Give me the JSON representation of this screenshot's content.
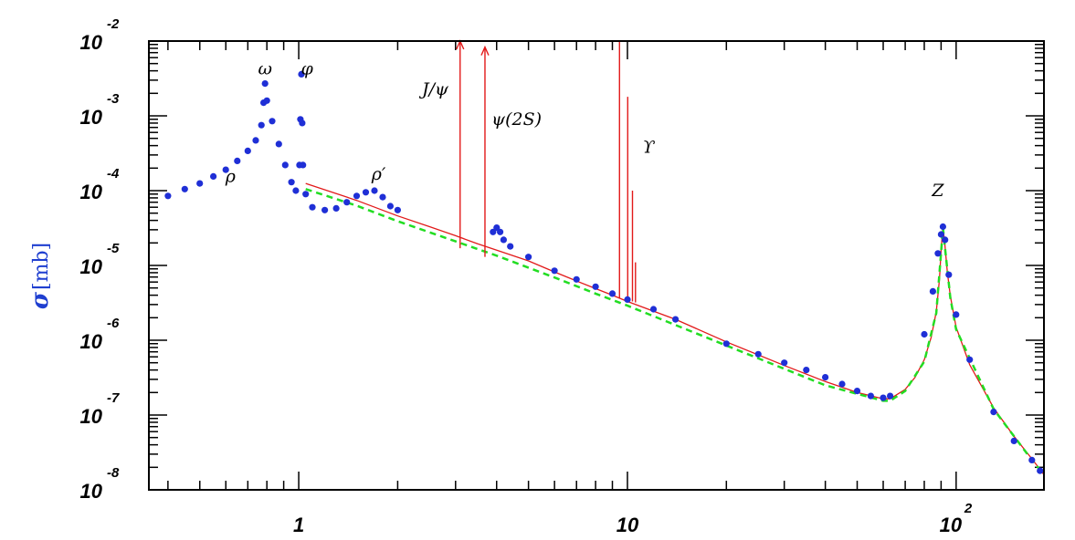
{
  "chart_data": {
    "type": "scatter",
    "title": "",
    "xlabel": "",
    "ylabel_symbol": "σ",
    "ylabel_unit": "[mb]",
    "x_scale": "log",
    "y_scale": "log",
    "xlim": [
      0.35,
      185
    ],
    "ylim": [
      1e-08,
      0.01
    ],
    "x_tick_labels": [
      "1",
      "10",
      "10",
      "2"
    ],
    "y_tick_labels": [
      {
        "base": "10",
        "exp": "-2"
      },
      {
        "base": "10",
        "exp": "-3"
      },
      {
        "base": "10",
        "exp": "-4"
      },
      {
        "base": "10",
        "exp": "-5"
      },
      {
        "base": "10",
        "exp": "-6"
      },
      {
        "base": "10",
        "exp": "-7"
      },
      {
        "base": "10",
        "exp": "-8"
      }
    ],
    "annotations": [
      {
        "text": "ω",
        "x": 0.79,
        "y": 0.0036
      },
      {
        "text": "φ",
        "x": 1.06,
        "y": 0.0036
      },
      {
        "text": "ρ",
        "x": 0.62,
        "y": 0.00013
      },
      {
        "text": "ρ′",
        "x": 1.75,
        "y": 0.00014
      },
      {
        "text": "J/ψ",
        "x": 2.6,
        "y": 0.0019
      },
      {
        "text": "ψ(2S)",
        "x": 4.6,
        "y": 0.00075
      },
      {
        "text": "ϒ",
        "x": 11.6,
        "y": 0.00032
      },
      {
        "text": "Z",
        "x": 88,
        "y": 8.5e-05
      }
    ],
    "series": [
      {
        "name": "",
        "color": "#1f2fd6",
        "style": "markers",
        "x": [
          0.4,
          0.45,
          0.5,
          0.55,
          0.6,
          0.65,
          0.7,
          0.74,
          0.77,
          0.782,
          0.79,
          0.8,
          0.83,
          0.87,
          0.91,
          0.95,
          0.98,
          1.005,
          1.012,
          1.019,
          1.025,
          1.03,
          1.05,
          1.1,
          1.2,
          1.3,
          1.4,
          1.5,
          1.6,
          1.7,
          1.8,
          1.9,
          2.0,
          3.9,
          4.0,
          4.1,
          4.2,
          4.4,
          5.0,
          6.0,
          7.0,
          8.0,
          9.0,
          10.0,
          12.0,
          14.0,
          20.0,
          25.0,
          30.0,
          35.0,
          40.0,
          45.0,
          50.0,
          55.0,
          60.0,
          63.0,
          80.0,
          85.0,
          88.0,
          90.0,
          91.19,
          92.5,
          95.0,
          100.0,
          110.0,
          130.0,
          150.0,
          170.0,
          180.0
        ],
        "y": [
          8.5e-05,
          0.000105,
          0.000125,
          0.000155,
          0.00019,
          0.00025,
          0.00034,
          0.00047,
          0.00075,
          0.0015,
          0.0027,
          0.0016,
          0.00085,
          0.00042,
          0.00022,
          0.00013,
          0.0001,
          0.00022,
          0.0009,
          0.0036,
          0.0008,
          0.00022,
          9e-05,
          6e-05,
          5.5e-05,
          5.8e-05,
          7e-05,
          8.5e-05,
          9.5e-05,
          0.0001,
          8.2e-05,
          6.2e-05,
          5.5e-05,
          2.8e-05,
          3.2e-05,
          2.8e-05,
          2.2e-05,
          1.8e-05,
          1.3e-05,
          8.5e-06,
          6.5e-06,
          5.2e-06,
          4.2e-06,
          3.5e-06,
          2.6e-06,
          1.9e-06,
          9e-07,
          6.5e-07,
          5e-07,
          4e-07,
          3.2e-07,
          2.6e-07,
          2.1e-07,
          1.8e-07,
          1.7e-07,
          1.8e-07,
          1.2e-06,
          4.5e-06,
          1.45e-05,
          2.6e-05,
          3.3e-05,
          2.2e-05,
          7.5e-06,
          2.2e-06,
          5.5e-07,
          1.1e-07,
          4.5e-08,
          2.5e-08,
          1.8e-08
        ]
      },
      {
        "name": "",
        "color": "#e21a1a",
        "style": "line",
        "x": [
          1.05,
          1.5,
          2.0,
          2.5,
          3.0,
          3.5,
          4.0,
          5.0,
          6.0,
          7.0,
          8.0,
          9.0,
          10.0,
          14.0,
          20.0,
          30.0,
          40.0,
          50.0,
          60.0,
          63.0,
          70.0,
          75.0,
          80.0,
          84.0,
          87.0,
          89.0,
          90.0,
          91.19,
          92.5,
          94.0,
          96.0,
          100.0,
          110.0,
          130.0,
          150.0,
          170.0,
          185.0
        ],
        "y": [
          0.000125,
          7.4e-05,
          4.6e-05,
          3.3e-05,
          2.5e-05,
          1.95e-05,
          1.6e-05,
          1.15e-05,
          8.2e-06,
          6.2e-06,
          4.9e-06,
          4e-06,
          3.3e-06,
          1.9e-06,
          9.5e-07,
          4.6e-07,
          2.8e-07,
          2e-07,
          1.65e-07,
          1.65e-07,
          2.2e-07,
          3.2e-07,
          5.5e-07,
          1.1e-06,
          2.4e-06,
          6.5e-06,
          1.6e-05,
          3.4e-05,
          1.8e-05,
          8.2e-06,
          3.9e-06,
          1.5e-06,
          4.7e-07,
          1.25e-07,
          5.2e-08,
          2.6e-08,
          1.6e-08
        ]
      },
      {
        "name": "",
        "color": "#22dd22",
        "style": "dashed",
        "x": [
          1.05,
          1.5,
          2.0,
          3.0,
          4.0,
          6.0,
          8.0,
          10.0,
          20.0,
          40.0,
          60.0,
          63.0,
          70.0,
          80.0,
          87.0,
          90.0,
          91.19,
          92.5,
          96.0,
          100.0,
          130.0,
          170.0,
          185.0
        ],
        "y": [
          0.000105,
          6.3e-05,
          3.9e-05,
          2.1e-05,
          1.35e-05,
          6.9e-06,
          4.2e-06,
          2.9e-06,
          8.5e-07,
          2.5e-07,
          1.55e-07,
          1.55e-07,
          2.1e-07,
          5.2e-07,
          2.3e-06,
          1.5e-05,
          3.2e-05,
          1.7e-05,
          3.7e-06,
          1.4e-06,
          1.2e-07,
          2.5e-08,
          1.6e-08
        ]
      }
    ],
    "resonance_spikes": [
      {
        "x": 3.097,
        "y_base": 1.7e-05,
        "y_top": 0.01,
        "arrow": true
      },
      {
        "x": 3.686,
        "y_base": 1.3e-05,
        "y_top": 0.0083,
        "arrow": true
      },
      {
        "x": 9.46,
        "y_base": 3.6e-06,
        "y_top": 0.01,
        "arrow": false
      },
      {
        "x": 10.02,
        "y_base": 3.4e-06,
        "y_top": 0.0018,
        "arrow": false
      },
      {
        "x": 10.36,
        "y_base": 3.3e-06,
        "y_top": 0.0001,
        "arrow": false
      },
      {
        "x": 10.58,
        "y_base": 3.2e-06,
        "y_top": 1.1e-05,
        "arrow": false
      }
    ]
  }
}
